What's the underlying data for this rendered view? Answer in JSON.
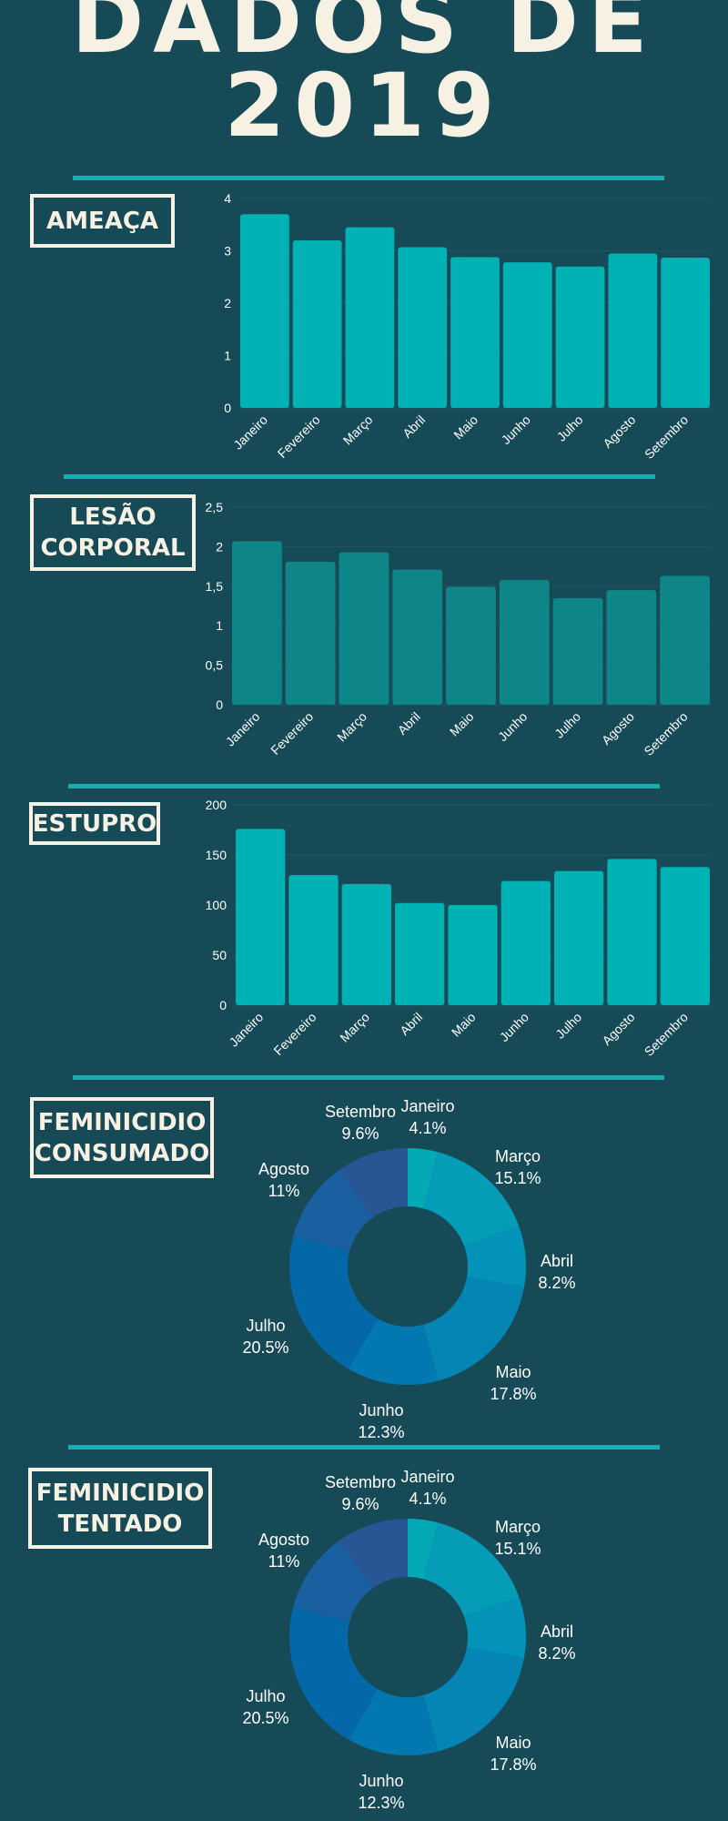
{
  "page": {
    "title_line1": "DADOS DE",
    "title_line2": "2019"
  },
  "sections": {
    "ameaca": {
      "label": "AMEAÇA"
    },
    "lesao": {
      "label": "LESÃO\nCORPORAL"
    },
    "estupro": {
      "label": "ESTUPRO"
    },
    "fem_consumado": {
      "label": "FEMINICIDIO\nCONSUMADO"
    },
    "fem_tentado": {
      "label": "FEMINICIDIO\nTENTADO"
    }
  },
  "colors": {
    "background": "#174a57",
    "accent": "#11b0b3",
    "bar_teal": "#00b2b3",
    "bar_dark_teal": "#0e8587",
    "title": "#f7f1e3"
  },
  "chart_data": [
    {
      "id": "ameaca",
      "type": "bar",
      "categories": [
        "Janeiro",
        "Fevereiro",
        "Março",
        "Abril",
        "Maio",
        "Junho",
        "Julho",
        "Agosto",
        "Setembro"
      ],
      "values": [
        3.7,
        3.2,
        3.45,
        3.07,
        2.88,
        2.78,
        2.7,
        2.95,
        2.87
      ],
      "ylim": [
        0,
        4
      ],
      "yticks": [
        "0",
        "1",
        "2",
        "3",
        "4"
      ],
      "color": "#00b2b3"
    },
    {
      "id": "lesao",
      "type": "bar",
      "categories": [
        "Janeiro",
        "Fevereiro",
        "Março",
        "Abril",
        "Maio",
        "Junho",
        "Julho",
        "Agosto",
        "Setembro"
      ],
      "values": [
        2.07,
        1.81,
        1.93,
        1.71,
        1.49,
        1.58,
        1.35,
        1.45,
        1.63
      ],
      "ylim": [
        0,
        2.5
      ],
      "yticks": [
        "0",
        "0,5",
        "1",
        "1,5",
        "2",
        "2,5"
      ],
      "color": "#0e8587"
    },
    {
      "id": "estupro",
      "type": "bar",
      "categories": [
        "Janeiro",
        "Fevereiro",
        "Março",
        "Abril",
        "Maio",
        "Junho",
        "Julho",
        "Agosto",
        "Setembro"
      ],
      "values": [
        176,
        130,
        121,
        102,
        100,
        124,
        134,
        146,
        138
      ],
      "ylim": [
        0,
        200
      ],
      "yticks": [
        "0",
        "50",
        "100",
        "150",
        "200"
      ],
      "color": "#00b2b3"
    },
    {
      "id": "fem_consumado",
      "type": "pie",
      "donut": true,
      "slices": [
        {
          "label": "Janeiro",
          "pct": "4.1%",
          "value": 4.1,
          "color": "#03aab5"
        },
        {
          "label": "Março",
          "pct": "15.1%",
          "value": 15.1,
          "color": "#049cb6"
        },
        {
          "label": "Abril",
          "pct": "8.2%",
          "value": 8.2,
          "color": "#0392b8"
        },
        {
          "label": "Maio",
          "pct": "17.8%",
          "value": 17.8,
          "color": "#0485b4"
        },
        {
          "label": "Junho",
          "pct": "12.3%",
          "value": 12.3,
          "color": "#0377b0"
        },
        {
          "label": "Julho",
          "pct": "20.5%",
          "value": 20.5,
          "color": "#0468a8"
        },
        {
          "label": "Agosto",
          "pct": "11%",
          "value": 11,
          "color": "#1a5f9f"
        },
        {
          "label": "Setembro",
          "pct": "9.6%",
          "value": 9.6,
          "color": "#285593"
        }
      ]
    },
    {
      "id": "fem_tentado",
      "type": "pie",
      "donut": true,
      "slices": [
        {
          "label": "Janeiro",
          "pct": "4.1%",
          "value": 4.1,
          "color": "#03aab5"
        },
        {
          "label": "Março",
          "pct": "15.1%",
          "value": 15.1,
          "color": "#049cb6"
        },
        {
          "label": "Abril",
          "pct": "8.2%",
          "value": 8.2,
          "color": "#0392b8"
        },
        {
          "label": "Maio",
          "pct": "17.8%",
          "value": 17.8,
          "color": "#0485b4"
        },
        {
          "label": "Junho",
          "pct": "12.3%",
          "value": 12.3,
          "color": "#0377b0"
        },
        {
          "label": "Julho",
          "pct": "20.5%",
          "value": 20.5,
          "color": "#0468a8"
        },
        {
          "label": "Agosto",
          "pct": "11%",
          "value": 11,
          "color": "#1a5f9f"
        },
        {
          "label": "Setembro",
          "pct": "9.6%",
          "value": 9.6,
          "color": "#285593"
        }
      ]
    }
  ]
}
